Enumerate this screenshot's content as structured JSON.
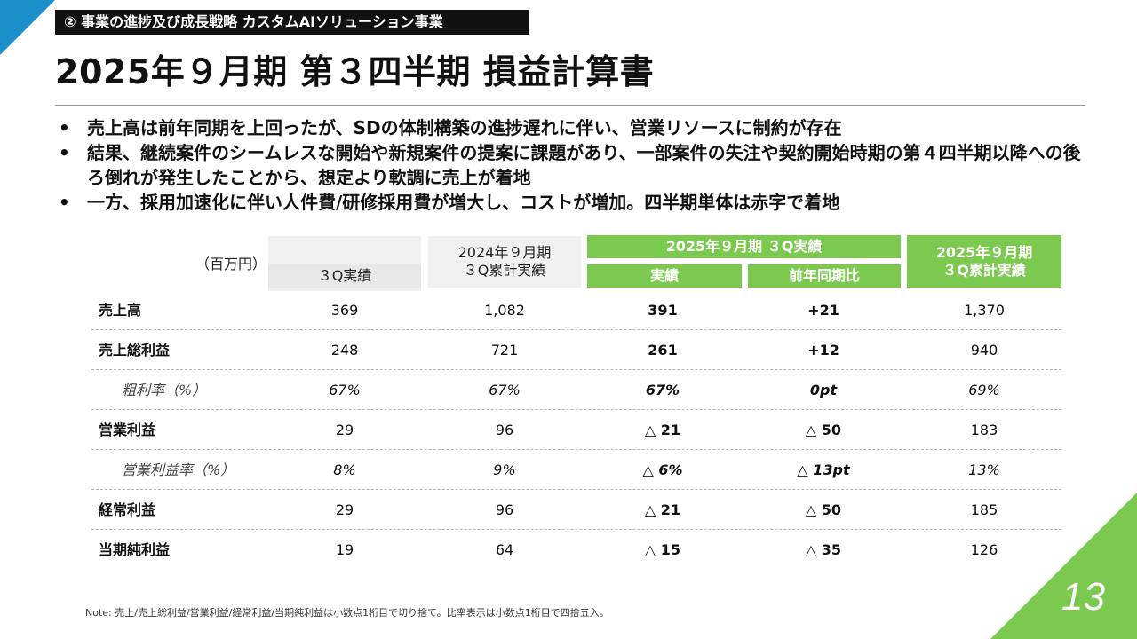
{
  "header": {
    "section_label": "② 事業の進捗及び成長戦略 カスタムAIソリューション事業",
    "title": "2025年９月期 第３四半期 損益計算書"
  },
  "bullets": [
    "売上高は前年同期を上回ったが、SDの体制構築の進捗遅れに伴い、営業リソースに制約が存在",
    "結果、継続案件のシームレスな開始や新規案件の提案に課題があり、一部案件の失注や契約開始時期の第４四半期以降への後ろ倒れが発生したことから、想定より軟調に売上が着地",
    "一方、採用加速化に伴い人件費/研修採用費が増大し、コストが増加。四半期単体は赤字で着地"
  ],
  "bullet_marker": "•",
  "table": {
    "unit": "（百万円）",
    "headers": {
      "col1": "３Q実績",
      "col2": "2024年９月期\n３Q累計実績",
      "group": "2025年９月期 ３Q実績",
      "col3": "実績",
      "col4": "前年同期比",
      "col5": "2025年９月期\n３Q累計実績"
    },
    "rows": [
      {
        "label": "売上高",
        "c1": "369",
        "c2": "1,082",
        "c3": "391",
        "c4": "+21",
        "c5": "1,370"
      },
      {
        "label": "売上総利益",
        "c1": "248",
        "c2": "721",
        "c3": "261",
        "c4": "+12",
        "c5": "940"
      },
      {
        "label": "粗利率（%）",
        "c1": "67%",
        "c2": "67%",
        "c3": "67%",
        "c4": "0pt",
        "c5": "69%"
      },
      {
        "label": "営業利益",
        "c1": "29",
        "c2": "96",
        "c3": "△ 21",
        "c4": "△ 50",
        "c5": "183"
      },
      {
        "label": "営業利益率（%）",
        "c1": "8%",
        "c2": "9%",
        "c3": "△ 6%",
        "c4": "△ 13pt",
        "c5": "13%"
      },
      {
        "label": "経常利益",
        "c1": "29",
        "c2": "96",
        "c3": "△ 21",
        "c4": "△ 50",
        "c5": "185"
      },
      {
        "label": "当期純利益",
        "c1": "19",
        "c2": "64",
        "c3": "△ 15",
        "c4": "△ 35",
        "c5": "126"
      }
    ]
  },
  "footer": {
    "note": "Note: 売上/売上総利益/営業利益/経常利益/当期純利益は小数点1桁目で切り捨て。比率表示は小数点1桁目で四捨五入。",
    "page_number": "13"
  },
  "colors": {
    "accent_blue": "#1b8fc9",
    "accent_green": "#7cc94f",
    "header_gray": "#f0f0f0"
  }
}
